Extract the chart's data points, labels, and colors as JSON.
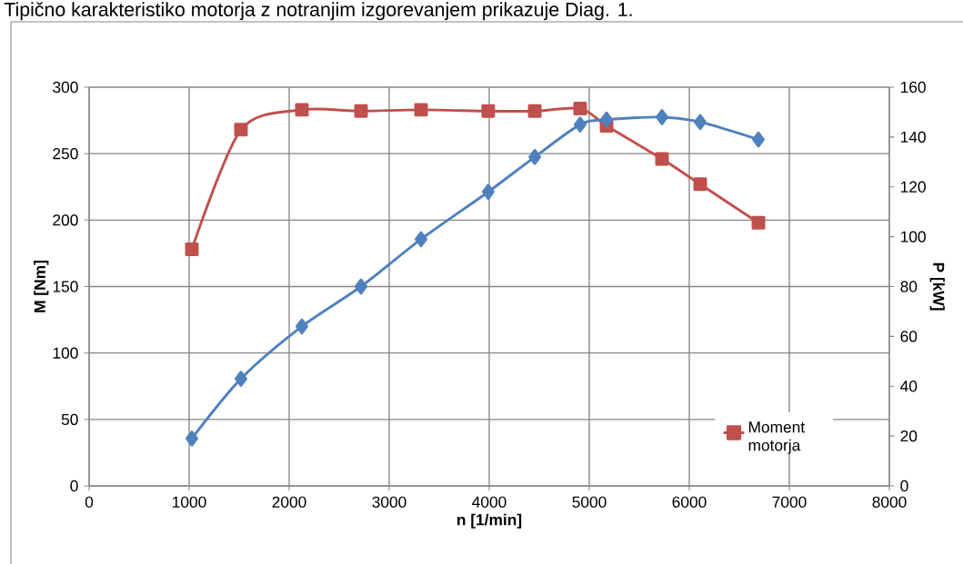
{
  "chart_data": {
    "type": "line",
    "annotations": [
      "Tipično karakteristiko motorja z notranjim izgorevanjem prikazuje Diag. 1."
    ],
    "xlabel": "n [1/min]",
    "ylabel": "M [Nm]",
    "y2label": "P [kW]",
    "x": [
      1027,
      1518,
      2127,
      2718,
      3318,
      3990,
      4455,
      4909,
      5173,
      5727,
      6109,
      6691
    ],
    "xlim": [
      0,
      8000
    ],
    "xticks": [
      0,
      1000,
      2000,
      3000,
      4000,
      5000,
      6000,
      7000,
      8000
    ],
    "ylim": [
      0,
      300
    ],
    "yticks": [
      0,
      50,
      100,
      150,
      200,
      250,
      300
    ],
    "y2lim": [
      0,
      160
    ],
    "y2ticks": [
      0,
      20,
      40,
      60,
      80,
      100,
      120,
      140,
      160
    ],
    "grid": true,
    "legend": "bottom right",
    "series": [
      {
        "name": "Moment motorja",
        "color": "#c0504d",
        "marker": "square",
        "values": [
          178,
          268,
          283,
          282,
          283,
          282,
          282,
          284,
          271,
          246,
          227,
          198
        ]
      },
      {
        "color": "#4f81bd",
        "marker": "diamond",
        "axis": "y2",
        "values": [
          19,
          43,
          64,
          80,
          99,
          118,
          132,
          145,
          147,
          148,
          146,
          139
        ]
      }
    ]
  }
}
